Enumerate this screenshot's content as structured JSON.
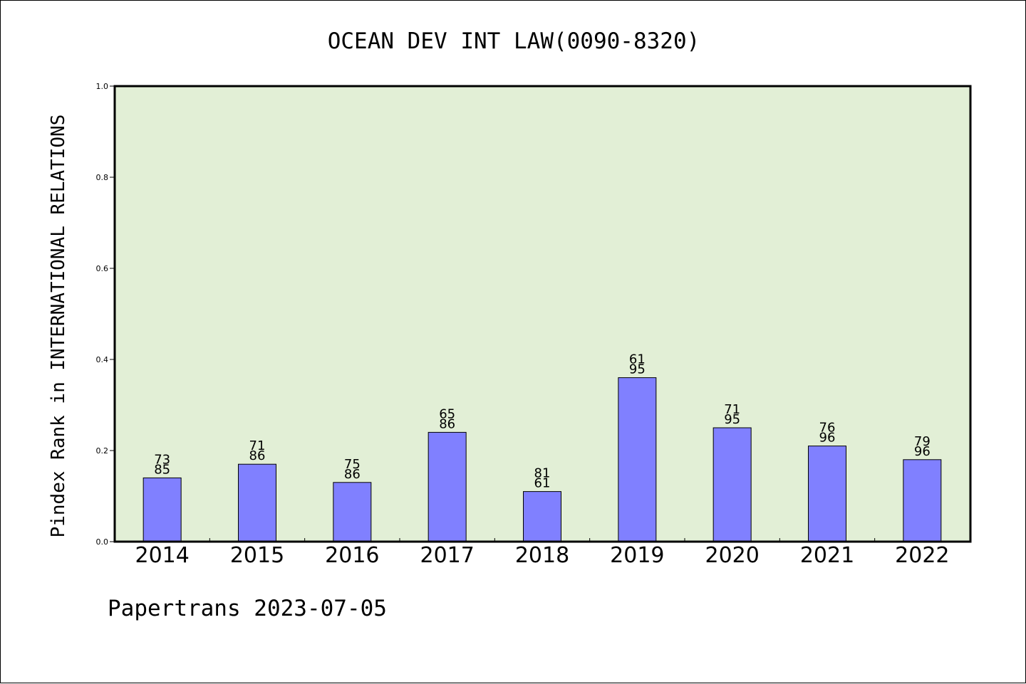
{
  "chart_data": {
    "type": "bar",
    "title": "OCEAN DEV INT LAW(0090-8320)",
    "ylabel": "Pindex Rank in INTERNATIONAL RELATIONS",
    "xlabel": "",
    "categories": [
      "2014",
      "2015",
      "2016",
      "2017",
      "2018",
      "2019",
      "2020",
      "2021",
      "2022"
    ],
    "values": [
      0.14,
      0.17,
      0.13,
      0.24,
      0.11,
      0.36,
      0.25,
      0.21,
      0.18
    ],
    "labels_top": [
      "73",
      "71",
      "75",
      "65",
      "81",
      "61",
      "71",
      "76",
      "79"
    ],
    "labels_bottom": [
      "85",
      "86",
      "86",
      "86",
      "61",
      "95",
      "95",
      "96",
      "96"
    ],
    "ylim": [
      0.0,
      1.0
    ],
    "yticks": [
      "0.0",
      "0.2",
      "0.4",
      "0.6",
      "0.8",
      "1.0"
    ],
    "grid": false,
    "colors": {
      "bar": "#8080ff",
      "plot_background": "#e2efd6",
      "axis": "#000000"
    }
  },
  "footer": {
    "text": "Papertrans 2023-07-05"
  }
}
